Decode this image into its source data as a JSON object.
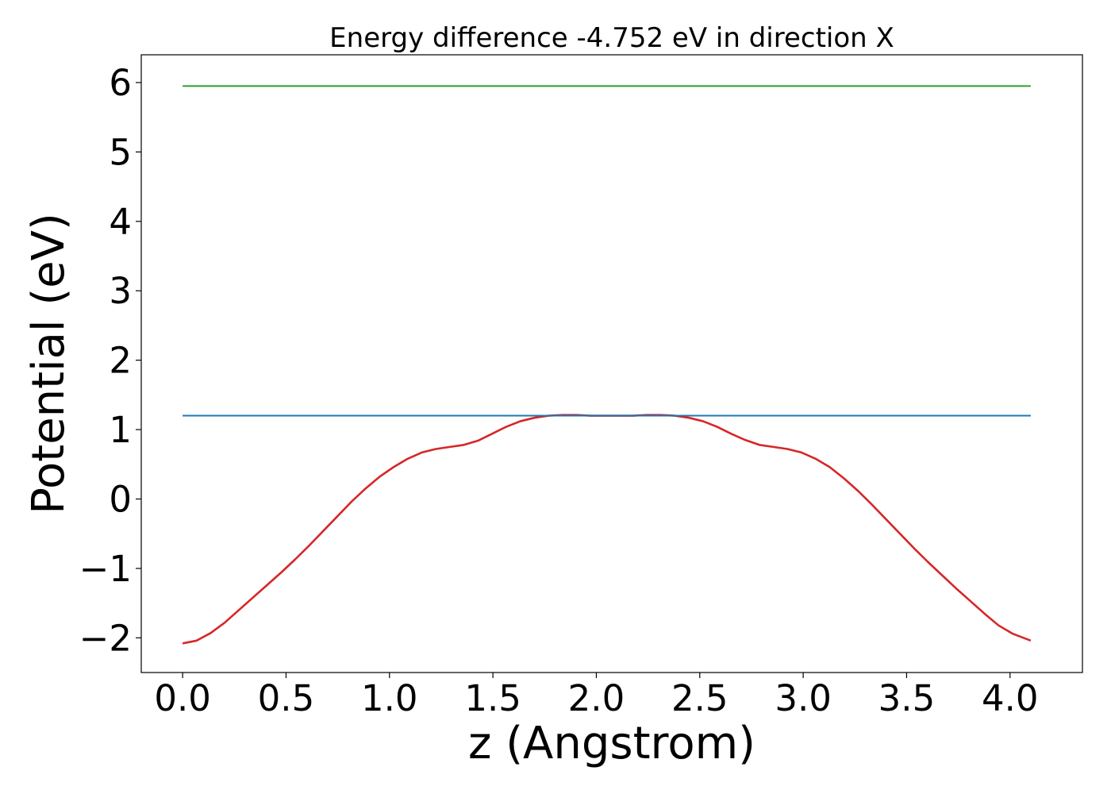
{
  "chart_data": {
    "type": "line",
    "title": "Energy difference -4.752 eV in direction X",
    "xlabel": "z (Angstrom)",
    "ylabel": "Potential (eV)",
    "xlim": [
      -0.2,
      4.35
    ],
    "ylim": [
      -2.5,
      6.4
    ],
    "xticks": [
      0.0,
      0.5,
      1.0,
      1.5,
      2.0,
      2.5,
      3.0,
      3.5,
      4.0
    ],
    "xtick_labels": [
      "0.0",
      "0.5",
      "1.0",
      "1.5",
      "2.0",
      "2.5",
      "3.0",
      "3.5",
      "4.0"
    ],
    "yticks": [
      -2,
      -1,
      0,
      1,
      2,
      3,
      4,
      5,
      6
    ],
    "ytick_labels": [
      "−2",
      "−1",
      "0",
      "1",
      "2",
      "3",
      "4",
      "5",
      "6"
    ],
    "grid": false,
    "series": [
      {
        "color": "#d62728",
        "x": [
          0.0,
          0.068,
          0.136,
          0.204,
          0.272,
          0.34,
          0.408,
          0.476,
          0.544,
          0.612,
          0.68,
          0.748,
          0.816,
          0.884,
          0.952,
          1.02,
          1.088,
          1.156,
          1.224,
          1.292,
          1.36,
          1.428,
          1.496,
          1.564,
          1.632,
          1.7,
          1.768,
          1.836,
          1.904,
          1.972,
          2.04,
          2.108,
          2.176,
          2.244,
          2.312,
          2.38,
          2.448,
          2.516,
          2.584,
          2.652,
          2.72,
          2.788,
          2.856,
          2.924,
          2.992,
          3.06,
          3.128,
          3.196,
          3.264,
          3.332,
          3.4,
          3.468,
          3.536,
          3.604,
          3.672,
          3.74,
          3.808,
          3.876,
          3.944,
          4.012,
          4.1
        ],
        "y": [
          -2.08,
          -2.04,
          -1.93,
          -1.78,
          -1.6,
          -1.42,
          -1.24,
          -1.06,
          -0.87,
          -0.67,
          -0.46,
          -0.25,
          -0.04,
          0.15,
          0.32,
          0.46,
          0.58,
          0.67,
          0.72,
          0.75,
          0.78,
          0.84,
          0.94,
          1.04,
          1.12,
          1.17,
          1.2,
          1.21,
          1.21,
          1.2,
          1.2,
          1.2,
          1.2,
          1.21,
          1.21,
          1.2,
          1.17,
          1.12,
          1.04,
          0.94,
          0.85,
          0.78,
          0.75,
          0.72,
          0.67,
          0.58,
          0.46,
          0.3,
          0.12,
          -0.08,
          -0.29,
          -0.5,
          -0.71,
          -0.91,
          -1.1,
          -1.29,
          -1.47,
          -1.65,
          -1.82,
          -1.94,
          -2.04
        ]
      },
      {
        "color": "#1f77b4",
        "x": [
          0.0,
          4.1
        ],
        "y": [
          1.2,
          1.2
        ]
      },
      {
        "color": "#2ca02c",
        "x": [
          0.0,
          4.1
        ],
        "y": [
          5.95,
          5.95
        ]
      }
    ]
  }
}
